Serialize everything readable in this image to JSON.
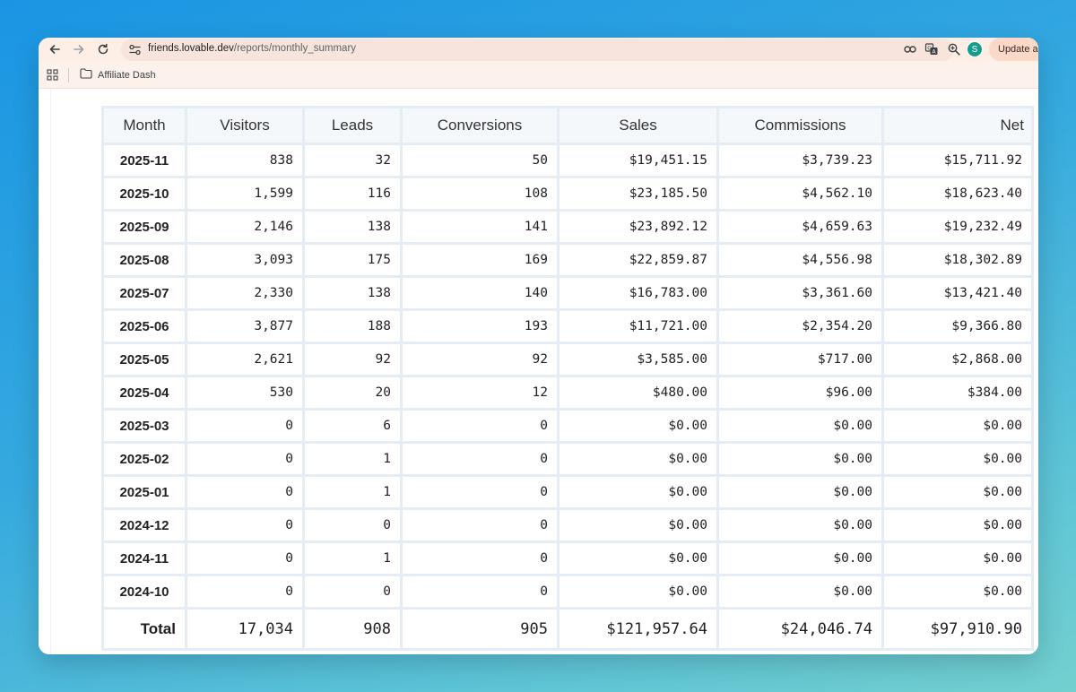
{
  "browser": {
    "url_host": "friends.lovable.dev",
    "url_path": "/reports/monthly_summary",
    "profile_initial": "S",
    "update_label": "Update a",
    "bookmark": "Affiliate Dash",
    "icons": {
      "back": "back-arrow-icon",
      "forward": "forward-arrow-icon",
      "reload": "reload-icon",
      "site_info": "site-info-icon",
      "password": "key-icon",
      "translate": "translate-icon",
      "zoom": "zoom-icon",
      "bookmark_star": "star-icon",
      "apps": "apps-grid-icon",
      "folder": "folder-icon"
    }
  },
  "table": {
    "headers": {
      "month": "Month",
      "visitors": "Visitors",
      "leads": "Leads",
      "conversions": "Conversions",
      "sales": "Sales",
      "commissions": "Commissions",
      "net": "Net"
    },
    "rows": [
      {
        "month": "2025-11",
        "visitors": "838",
        "leads": "32",
        "conversions": "50",
        "sales": "$19,451.15",
        "commissions": "$3,739.23",
        "net": "$15,711.92"
      },
      {
        "month": "2025-10",
        "visitors": "1,599",
        "leads": "116",
        "conversions": "108",
        "sales": "$23,185.50",
        "commissions": "$4,562.10",
        "net": "$18,623.40"
      },
      {
        "month": "2025-09",
        "visitors": "2,146",
        "leads": "138",
        "conversions": "141",
        "sales": "$23,892.12",
        "commissions": "$4,659.63",
        "net": "$19,232.49"
      },
      {
        "month": "2025-08",
        "visitors": "3,093",
        "leads": "175",
        "conversions": "169",
        "sales": "$22,859.87",
        "commissions": "$4,556.98",
        "net": "$18,302.89"
      },
      {
        "month": "2025-07",
        "visitors": "2,330",
        "leads": "138",
        "conversions": "140",
        "sales": "$16,783.00",
        "commissions": "$3,361.60",
        "net": "$13,421.40"
      },
      {
        "month": "2025-06",
        "visitors": "3,877",
        "leads": "188",
        "conversions": "193",
        "sales": "$11,721.00",
        "commissions": "$2,354.20",
        "net": "$9,366.80"
      },
      {
        "month": "2025-05",
        "visitors": "2,621",
        "leads": "92",
        "conversions": "92",
        "sales": "$3,585.00",
        "commissions": "$717.00",
        "net": "$2,868.00"
      },
      {
        "month": "2025-04",
        "visitors": "530",
        "leads": "20",
        "conversions": "12",
        "sales": "$480.00",
        "commissions": "$96.00",
        "net": "$384.00"
      },
      {
        "month": "2025-03",
        "visitors": "0",
        "leads": "6",
        "conversions": "0",
        "sales": "$0.00",
        "commissions": "$0.00",
        "net": "$0.00"
      },
      {
        "month": "2025-02",
        "visitors": "0",
        "leads": "1",
        "conversions": "0",
        "sales": "$0.00",
        "commissions": "$0.00",
        "net": "$0.00"
      },
      {
        "month": "2025-01",
        "visitors": "0",
        "leads": "1",
        "conversions": "0",
        "sales": "$0.00",
        "commissions": "$0.00",
        "net": "$0.00"
      },
      {
        "month": "2024-12",
        "visitors": "0",
        "leads": "0",
        "conversions": "0",
        "sales": "$0.00",
        "commissions": "$0.00",
        "net": "$0.00"
      },
      {
        "month": "2024-11",
        "visitors": "0",
        "leads": "1",
        "conversions": "0",
        "sales": "$0.00",
        "commissions": "$0.00",
        "net": "$0.00"
      },
      {
        "month": "2024-10",
        "visitors": "0",
        "leads": "0",
        "conversions": "0",
        "sales": "$0.00",
        "commissions": "$0.00",
        "net": "$0.00"
      }
    ],
    "totals": {
      "label": "Total",
      "visitors": "17,034",
      "leads": "908",
      "conversions": "905",
      "sales": "$121,957.64",
      "commissions": "$24,046.74",
      "net": "$97,910.90"
    }
  }
}
